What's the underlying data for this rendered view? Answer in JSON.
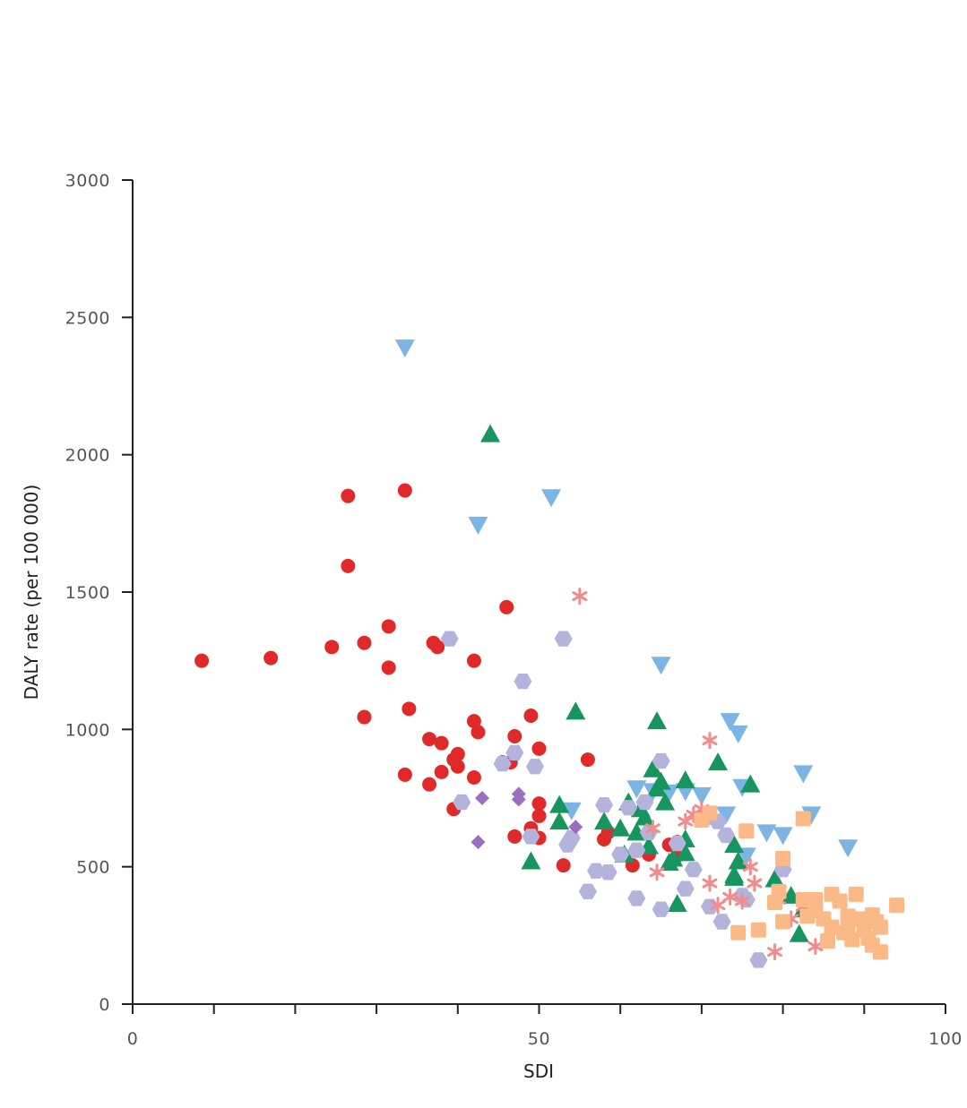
{
  "chart_data": {
    "type": "scatter",
    "title": "",
    "xlabel": "SDI",
    "ylabel": "DALY rate (per 100 000)",
    "xlim": [
      0,
      100
    ],
    "ylim": [
      0,
      3000
    ],
    "x_ticks": [
      0,
      10,
      20,
      30,
      40,
      50,
      60,
      70,
      80,
      90,
      100
    ],
    "x_tick_labels": [
      "0",
      "50",
      "100"
    ],
    "x_tick_label_values": [
      0,
      50,
      100
    ],
    "y_ticks": [
      0,
      500,
      1000,
      1500,
      2000,
      2500,
      3000
    ],
    "y_tick_labels": [
      "0",
      "500",
      "1000",
      "1500",
      "2000",
      "2500",
      "3000"
    ],
    "grid": false,
    "legend": "none",
    "series": [
      {
        "marker": "circle",
        "color": "#e02a2a",
        "points": [
          [
            8.5,
            1250
          ],
          [
            17,
            1260
          ],
          [
            24.5,
            1300
          ],
          [
            26.5,
            1850
          ],
          [
            26.5,
            1595
          ],
          [
            28.5,
            1045
          ],
          [
            28.5,
            1315
          ],
          [
            31.5,
            1375
          ],
          [
            31.5,
            1225
          ],
          [
            33.5,
            1870
          ],
          [
            33.5,
            835
          ],
          [
            34,
            1075
          ],
          [
            36.5,
            965
          ],
          [
            36.5,
            800
          ],
          [
            37,
            1315
          ],
          [
            37.5,
            1300
          ],
          [
            38,
            950
          ],
          [
            38,
            845
          ],
          [
            39.5,
            710
          ],
          [
            39.5,
            890
          ],
          [
            40,
            910
          ],
          [
            40,
            865
          ],
          [
            42,
            1250
          ],
          [
            42,
            1030
          ],
          [
            42,
            825
          ],
          [
            42.5,
            990
          ],
          [
            45.5,
            880
          ],
          [
            46,
            1445
          ],
          [
            46.5,
            880
          ],
          [
            47,
            975
          ],
          [
            47,
            610
          ],
          [
            49,
            640
          ],
          [
            49,
            1050
          ],
          [
            50,
            930
          ],
          [
            50,
            730
          ],
          [
            50,
            685
          ],
          [
            50,
            605
          ],
          [
            53,
            505
          ],
          [
            56,
            890
          ],
          [
            58,
            600
          ],
          [
            58.5,
            625
          ],
          [
            61.5,
            505
          ],
          [
            63.5,
            545
          ],
          [
            66,
            580
          ],
          [
            67,
            590
          ],
          [
            67,
            540
          ]
        ]
      },
      {
        "marker": "triangle-down",
        "color": "#7cb4e4",
        "points": [
          [
            33.5,
            2390
          ],
          [
            42.5,
            1745
          ],
          [
            51.5,
            1845
          ],
          [
            54,
            705
          ],
          [
            65,
            1235
          ],
          [
            62,
            785
          ],
          [
            64,
            775
          ],
          [
            66,
            770
          ],
          [
            68,
            775
          ],
          [
            70,
            760
          ],
          [
            73,
            690
          ],
          [
            73.5,
            1030
          ],
          [
            74.5,
            985
          ],
          [
            75,
            790
          ],
          [
            75.5,
            540
          ],
          [
            78,
            625
          ],
          [
            80,
            615
          ],
          [
            83.5,
            690
          ],
          [
            82.5,
            840
          ],
          [
            88,
            570
          ]
        ]
      },
      {
        "marker": "triangle-up",
        "color": "#17955f",
        "points": [
          [
            44,
            2075
          ],
          [
            49,
            520
          ],
          [
            52.5,
            725
          ],
          [
            52.5,
            665
          ],
          [
            54.5,
            1065
          ],
          [
            58,
            665
          ],
          [
            60,
            640
          ],
          [
            60.5,
            545
          ],
          [
            61,
            735
          ],
          [
            62,
            625
          ],
          [
            62.5,
            710
          ],
          [
            63,
            680
          ],
          [
            63.5,
            575
          ],
          [
            64,
            855
          ],
          [
            64.5,
            1030
          ],
          [
            64.5,
            785
          ],
          [
            65,
            810
          ],
          [
            65.5,
            735
          ],
          [
            66,
            515
          ],
          [
            66.5,
            530
          ],
          [
            67,
            365
          ],
          [
            68,
            600
          ],
          [
            68,
            550
          ],
          [
            68,
            815
          ],
          [
            72,
            880
          ],
          [
            74,
            580
          ],
          [
            74.5,
            520
          ],
          [
            74,
            460
          ],
          [
            74,
            470
          ],
          [
            76,
            800
          ],
          [
            79,
            455
          ],
          [
            81,
            395
          ],
          [
            82.5,
            345
          ],
          [
            82,
            255
          ]
        ]
      },
      {
        "marker": "hexagon",
        "color": "#b3b3dc",
        "points": [
          [
            39,
            1330
          ],
          [
            40.5,
            735
          ],
          [
            45.5,
            875
          ],
          [
            47,
            915
          ],
          [
            48,
            1175
          ],
          [
            49,
            610
          ],
          [
            49.5,
            865
          ],
          [
            53,
            1330
          ],
          [
            53.5,
            580
          ],
          [
            54,
            605
          ],
          [
            56,
            410
          ],
          [
            57,
            485
          ],
          [
            58,
            725
          ],
          [
            58.5,
            480
          ],
          [
            60,
            545
          ],
          [
            61,
            715
          ],
          [
            62,
            560
          ],
          [
            62,
            385
          ],
          [
            63,
            735
          ],
          [
            63.5,
            625
          ],
          [
            65,
            885
          ],
          [
            65,
            345
          ],
          [
            67,
            585
          ],
          [
            68,
            420
          ],
          [
            69,
            490
          ],
          [
            71,
            680
          ],
          [
            71,
            355
          ],
          [
            72,
            665
          ],
          [
            72.5,
            300
          ],
          [
            73,
            615
          ],
          [
            75,
            395
          ],
          [
            75.5,
            380
          ],
          [
            77,
            160
          ],
          [
            80,
            490
          ]
        ]
      },
      {
        "marker": "diamond",
        "color": "#9b6fbf",
        "points": [
          [
            42.5,
            590
          ],
          [
            43,
            750
          ],
          [
            47.5,
            765
          ],
          [
            47.5,
            745
          ],
          [
            54.5,
            645
          ]
        ]
      },
      {
        "marker": "asterisk",
        "color": "#f28c8c",
        "points": [
          [
            55,
            1485
          ],
          [
            71,
            960
          ],
          [
            64,
            640
          ],
          [
            64.5,
            480
          ],
          [
            68,
            665
          ],
          [
            69,
            690
          ],
          [
            70,
            710
          ],
          [
            71,
            440
          ],
          [
            72,
            360
          ],
          [
            73.5,
            390
          ],
          [
            75,
            375
          ],
          [
            76,
            500
          ],
          [
            76.5,
            440
          ],
          [
            79,
            190
          ],
          [
            79.5,
            380
          ],
          [
            81,
            310
          ],
          [
            82.5,
            355
          ],
          [
            84,
            210
          ]
        ]
      },
      {
        "marker": "square",
        "color": "#fbb987",
        "points": [
          [
            70,
            670
          ],
          [
            71,
            695
          ],
          [
            74.5,
            260
          ],
          [
            75.5,
            630
          ],
          [
            77,
            270
          ],
          [
            79,
            370
          ],
          [
            79.5,
            410
          ],
          [
            80,
            300
          ],
          [
            80,
            530
          ],
          [
            82.5,
            675
          ],
          [
            84,
            340
          ],
          [
            84,
            380
          ],
          [
            85,
            310
          ],
          [
            85.5,
            230
          ],
          [
            86,
            280
          ],
          [
            86,
            400
          ],
          [
            87,
            375
          ],
          [
            87.5,
            260
          ],
          [
            88,
            320
          ],
          [
            88,
            290
          ],
          [
            88.5,
            235
          ],
          [
            89,
            400
          ],
          [
            89.5,
            310
          ],
          [
            90,
            270
          ],
          [
            90.5,
            240
          ],
          [
            91,
            325
          ],
          [
            91,
            215
          ],
          [
            91.5,
            300
          ],
          [
            92,
            280
          ],
          [
            92,
            190
          ],
          [
            94,
            360
          ],
          [
            82.5,
            380
          ],
          [
            83,
            320
          ]
        ]
      }
    ]
  }
}
